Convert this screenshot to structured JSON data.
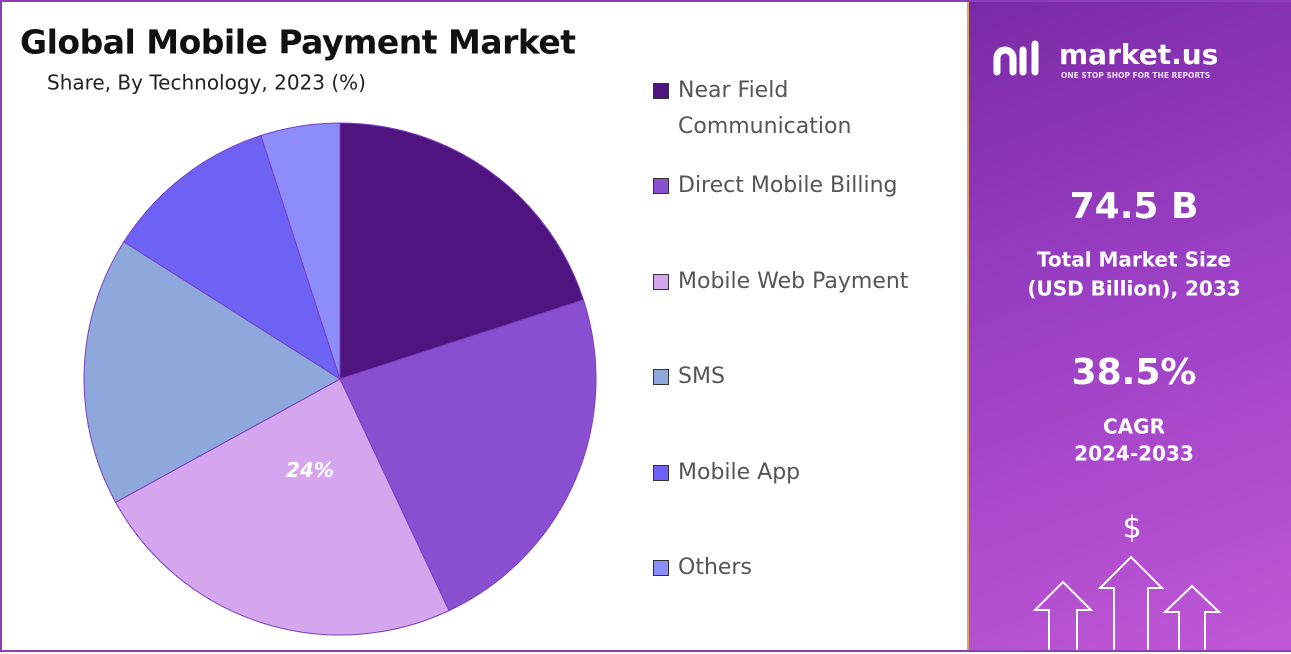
{
  "chart_data": {
    "type": "pie",
    "title": "Global Mobile Payment Market",
    "subtitle": "Share, By Technology, 2023 (%)",
    "categories": [
      "Near Field Communication",
      "Direct Mobile Billing",
      "Mobile Web Payment",
      "SMS",
      "Mobile App",
      "Others"
    ],
    "values": [
      20,
      23,
      24,
      17,
      11,
      5
    ],
    "value_labels": [
      null,
      null,
      "24%",
      null,
      null,
      null
    ],
    "colors": [
      "#4f1480",
      "#8a4fd0",
      "#d5a6ee",
      "#8fa8dc",
      "#6e62f5",
      "#8c8cfa"
    ],
    "legend": "right"
  },
  "panel": {
    "brand": "market.us",
    "tagline": "ONE STOP SHOP FOR THE REPORTS",
    "market_size": "74.5 B",
    "market_size_label": [
      "Total Market Size",
      "(USD Billion), 2033"
    ],
    "cagr": "38.5%",
    "cagr_label": [
      "CAGR",
      "2024-2033"
    ],
    "currency": "$"
  }
}
